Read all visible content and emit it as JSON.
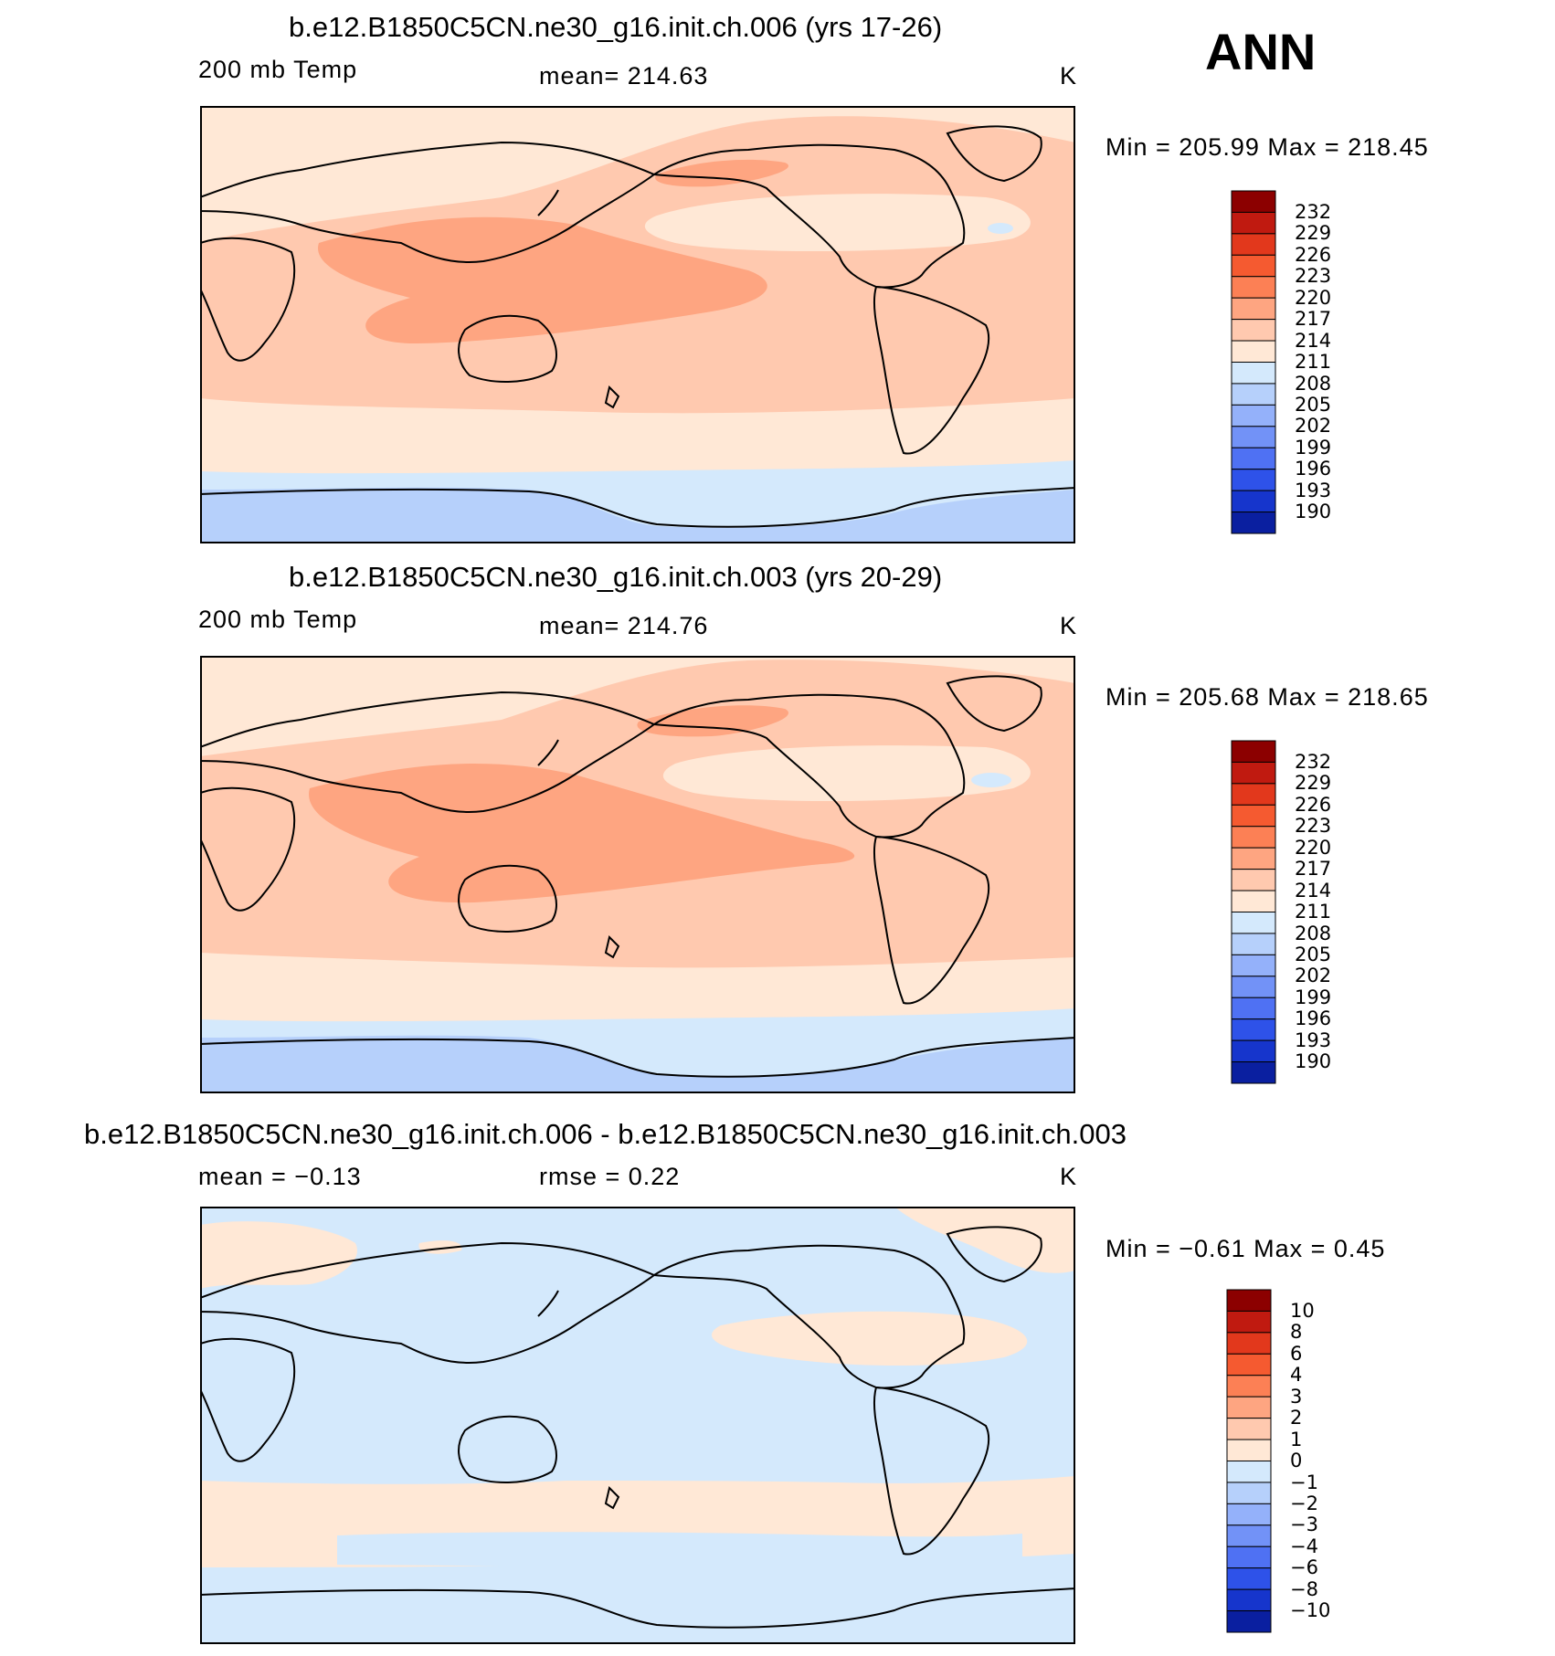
{
  "season": "ANN",
  "colors": {
    "warm": [
      "#FFE8D6",
      "#FFC9AF",
      "#FEA581",
      "#FC8055",
      "#F55A30",
      "#E2381C",
      "#C01A10",
      "#8C0000"
    ],
    "cool": [
      "#D4E9FC",
      "#B6D0FB",
      "#94B1FA",
      "#7292F7",
      "#4F71F3",
      "#2E52E9",
      "#1635CC",
      "#0A1FA0",
      "#00007A"
    ]
  },
  "panels": [
    {
      "title": "b.e12.B1850C5CN.ne30_g16.init.ch.006 (yrs 17-26)",
      "left_label": "200 mb Temp",
      "center_label": "mean=  214.63",
      "units": "K",
      "minmax": "Min  =  205.99  Max  =  218.45",
      "colorbar_labels": [
        "232",
        "229",
        "226",
        "223",
        "220",
        "217",
        "214",
        "211",
        "208",
        "205",
        "202",
        "199",
        "196",
        "193",
        "190"
      ]
    },
    {
      "title": "b.e12.B1850C5CN.ne30_g16.init.ch.003 (yrs 20-29)",
      "left_label": "200 mb Temp",
      "center_label": "mean=  214.76",
      "units": "K",
      "minmax": "Min  =  205.68  Max  =  218.65",
      "colorbar_labels": [
        "232",
        "229",
        "226",
        "223",
        "220",
        "217",
        "214",
        "211",
        "208",
        "205",
        "202",
        "199",
        "196",
        "193",
        "190"
      ]
    },
    {
      "title": "b.e12.B1850C5CN.ne30_g16.init.ch.006 - b.e12.B1850C5CN.ne30_g16.init.ch.003",
      "left_label": "mean  =    −0.13",
      "center_label": "rmse  =     0.22",
      "units": "K",
      "minmax": "Min  =    −0.61  Max  =     0.45",
      "colorbar_labels": [
        "10",
        "8",
        "6",
        "4",
        "3",
        "2",
        "1",
        "0",
        "−1",
        "−2",
        "−3",
        "−4",
        "−6",
        "−8",
        "−10"
      ]
    }
  ]
}
